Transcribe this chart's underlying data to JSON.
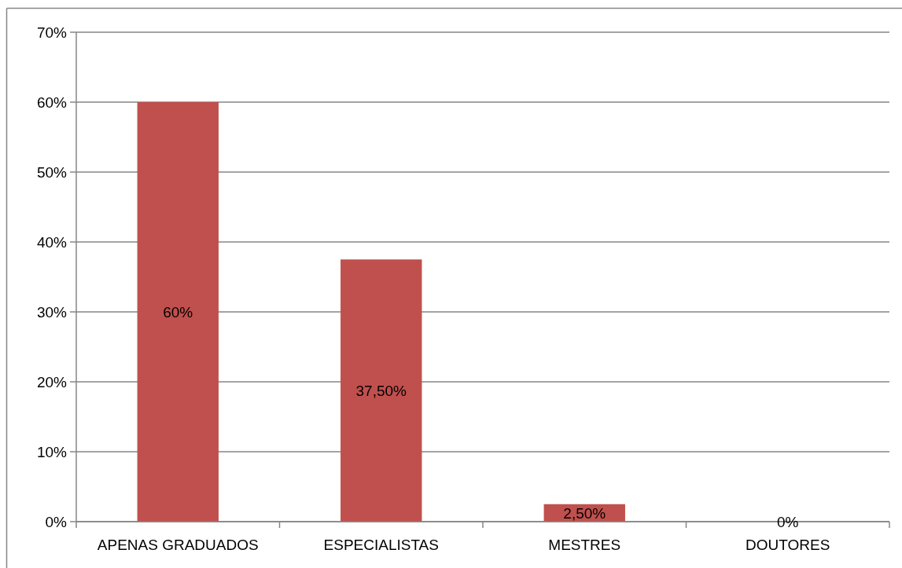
{
  "chart_data": {
    "type": "bar",
    "categories": [
      "APENAS GRADUADOS",
      "ESPECIALISTAS",
      "MESTRES",
      "DOUTORES"
    ],
    "values": [
      60,
      37.5,
      2.5,
      0
    ],
    "color": "#c0504d",
    "value_labels": [
      "60%",
      "37,50%",
      "2,50%",
      "0%"
    ],
    "ylim": [
      0,
      70
    ],
    "yticks": [
      {
        "value": 0,
        "label": "0%"
      },
      {
        "value": 10,
        "label": "10%"
      },
      {
        "value": 20,
        "label": "20%"
      },
      {
        "value": 30,
        "label": "30%"
      },
      {
        "value": 40,
        "label": "40%"
      },
      {
        "value": 50,
        "label": "50%"
      },
      {
        "value": 60,
        "label": "60%"
      },
      {
        "value": 70,
        "label": "70%"
      }
    ],
    "grid": "y"
  }
}
